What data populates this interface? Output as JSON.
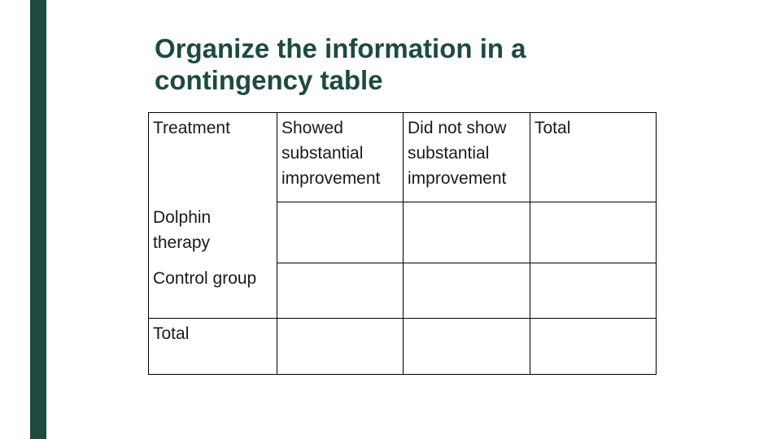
{
  "slide": {
    "accent_color": "#1e4a40",
    "title_lines": [
      "Organize the information in a",
      "contingency table"
    ]
  },
  "table": {
    "header": {
      "treatment": "Treatment",
      "showed": [
        "Showed",
        "substantial",
        "improvement"
      ],
      "did_not_show": [
        "Did not show",
        "substantial",
        "improvement"
      ],
      "total": "Total"
    },
    "rows": [
      {
        "label_lines": [
          "Dolphin",
          "therapy"
        ],
        "showed": "",
        "did_not_show": "",
        "total": ""
      },
      {
        "label_lines": [
          "Control group"
        ],
        "showed": "",
        "did_not_show": "",
        "total": ""
      },
      {
        "label_lines": [
          "Total"
        ],
        "showed": "",
        "did_not_show": "",
        "total": ""
      }
    ]
  }
}
